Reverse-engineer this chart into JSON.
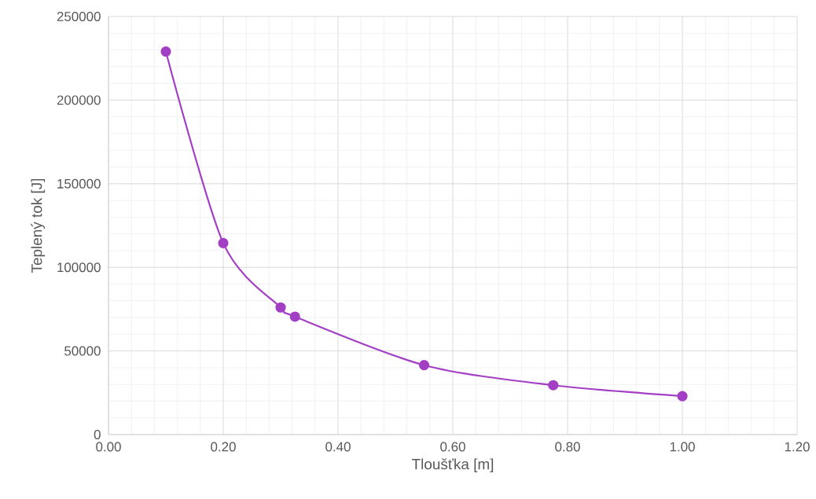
{
  "chart_data": {
    "type": "line",
    "xlabel": "Tloušťka [m]",
    "ylabel": "Teplený tok [J]",
    "x": [
      0.1,
      0.2,
      0.3,
      0.325,
      0.55,
      0.775,
      1.0
    ],
    "series": [
      {
        "color": "#a33fc4",
        "values": [
          229000,
          114500,
          76000,
          70500,
          41500,
          29500,
          23000
        ]
      }
    ],
    "xlim": [
      0,
      1.2
    ],
    "xticks": [
      {
        "value": 0,
        "label": "0.00"
      },
      {
        "value": 0.2,
        "label": "0.20"
      },
      {
        "value": 0.4,
        "label": "0.40"
      },
      {
        "value": 0.6,
        "label": "0.60"
      },
      {
        "value": 0.8,
        "label": "0.80"
      },
      {
        "value": 1.0,
        "label": "1.00"
      },
      {
        "value": 1.2,
        "label": "1.20"
      }
    ],
    "ylim": [
      0,
      250000
    ],
    "yticks": [
      0,
      50000,
      100000,
      150000,
      200000,
      250000
    ],
    "grid": true,
    "marker": "circle",
    "line_style": "solid"
  }
}
